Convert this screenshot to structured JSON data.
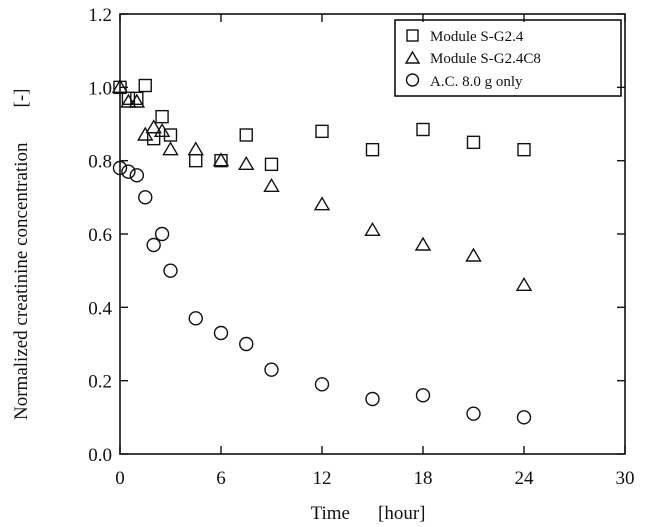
{
  "chart_data": {
    "type": "scatter",
    "title": "",
    "xlabel": "Time",
    "xunit": "[hour]",
    "ylabel": "Normalized creatinine concentration",
    "yunit": "[-]",
    "xlim": [
      0,
      30
    ],
    "ylim": [
      0,
      1.2
    ],
    "xticks": [
      "0",
      "6",
      "12",
      "18",
      "24",
      "30"
    ],
    "yticks": [
      "0.0",
      "0.2",
      "0.4",
      "0.6",
      "0.8",
      "1.0",
      "1.2"
    ],
    "grid": false,
    "legend_position": "top-right",
    "series": [
      {
        "name": "Module S-G2.4",
        "marker": "square",
        "x": [
          0,
          0.5,
          1,
          1.5,
          2,
          2.5,
          3,
          4.5,
          6,
          7.5,
          9,
          12,
          15,
          18,
          21,
          24
        ],
        "y": [
          1.0,
          0.97,
          0.97,
          1.005,
          0.86,
          0.92,
          0.87,
          0.8,
          0.8,
          0.87,
          0.79,
          0.88,
          0.83,
          0.885,
          0.85,
          0.83
        ]
      },
      {
        "name": "Module S-G2.4C8",
        "marker": "triangle",
        "x": [
          0,
          0.5,
          1,
          1.5,
          2,
          2.5,
          3,
          4.5,
          6,
          7.5,
          9,
          12,
          15,
          18,
          21,
          24
        ],
        "y": [
          1.0,
          0.96,
          0.96,
          0.87,
          0.89,
          0.88,
          0.83,
          0.83,
          0.8,
          0.79,
          0.73,
          0.68,
          0.61,
          0.57,
          0.54,
          0.46
        ]
      },
      {
        "name": "A.C. 8.0 g only",
        "marker": "circle",
        "x": [
          0,
          0.5,
          1,
          1.5,
          2,
          2.5,
          3,
          4.5,
          6,
          7.5,
          9,
          12,
          15,
          18,
          21,
          24
        ],
        "y": [
          0.78,
          0.77,
          0.76,
          0.7,
          0.57,
          0.6,
          0.5,
          0.37,
          0.33,
          0.3,
          0.23,
          0.19,
          0.15,
          0.16,
          0.11,
          0.1
        ]
      }
    ]
  }
}
